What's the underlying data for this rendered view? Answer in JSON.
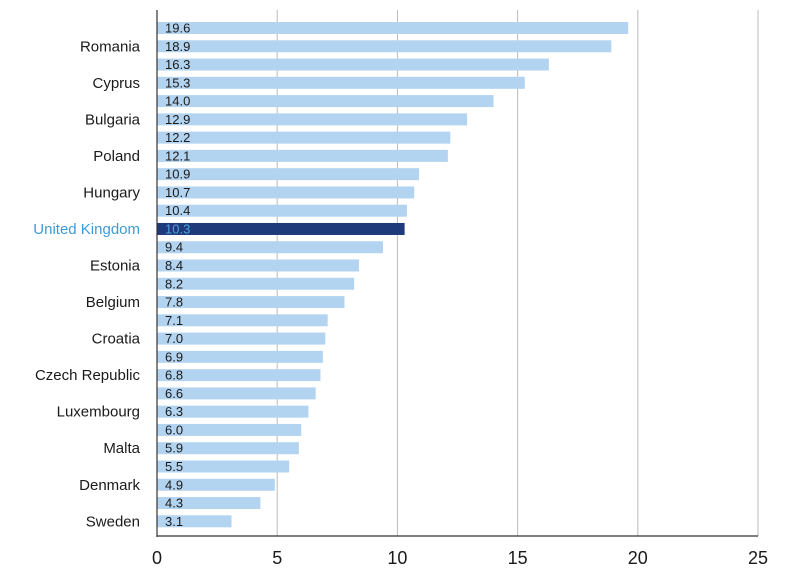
{
  "chart_data": {
    "type": "bar",
    "orientation": "horizontal",
    "title": "",
    "xlabel": "",
    "ylabel": "",
    "xlim": [
      0,
      25
    ],
    "xticks": [
      0,
      5,
      10,
      15,
      20,
      25
    ],
    "grid": true,
    "labeled_categories": [
      "Romania",
      "Cyprus",
      "Bulgaria",
      "Poland",
      "Hungary",
      "United Kingdom",
      "Estonia",
      "Belgium",
      "Croatia",
      "Czech Republic",
      "Luxembourg",
      "Malta",
      "Denmark",
      "Sweden"
    ],
    "bars": [
      {
        "label": "",
        "value": 19.6,
        "value_text": "19.6"
      },
      {
        "label": "Romania",
        "value": 18.9,
        "value_text": "18.9"
      },
      {
        "label": "",
        "value": 16.3,
        "value_text": "16.3"
      },
      {
        "label": "Cyprus",
        "value": 15.3,
        "value_text": "15.3"
      },
      {
        "label": "",
        "value": 14.0,
        "value_text": "14.0"
      },
      {
        "label": "Bulgaria",
        "value": 12.9,
        "value_text": "12.9"
      },
      {
        "label": "",
        "value": 12.2,
        "value_text": "12.2"
      },
      {
        "label": "Poland",
        "value": 12.1,
        "value_text": "12.1"
      },
      {
        "label": "",
        "value": 10.9,
        "value_text": "10.9"
      },
      {
        "label": "Hungary",
        "value": 10.7,
        "value_text": "10.7"
      },
      {
        "label": "",
        "value": 10.4,
        "value_text": "10.4"
      },
      {
        "label": "United Kingdom",
        "value": 10.3,
        "value_text": "10.3",
        "highlight": true
      },
      {
        "label": "",
        "value": 9.4,
        "value_text": "9.4"
      },
      {
        "label": "Estonia",
        "value": 8.4,
        "value_text": "8.4"
      },
      {
        "label": "",
        "value": 8.2,
        "value_text": "8.2"
      },
      {
        "label": "Belgium",
        "value": 7.8,
        "value_text": "7.8"
      },
      {
        "label": "",
        "value": 7.1,
        "value_text": "7.1"
      },
      {
        "label": "Croatia",
        "value": 7.0,
        "value_text": "7.0"
      },
      {
        "label": "",
        "value": 6.9,
        "value_text": "6.9"
      },
      {
        "label": "Czech Republic",
        "value": 6.8,
        "value_text": "6.8"
      },
      {
        "label": "",
        "value": 6.6,
        "value_text": "6.6"
      },
      {
        "label": "Luxembourg",
        "value": 6.3,
        "value_text": "6.3"
      },
      {
        "label": "",
        "value": 6.0,
        "value_text": "6.0"
      },
      {
        "label": "Malta",
        "value": 5.9,
        "value_text": "5.9"
      },
      {
        "label": "",
        "value": 5.5,
        "value_text": "5.5"
      },
      {
        "label": "Denmark",
        "value": 4.9,
        "value_text": "4.9"
      },
      {
        "label": "",
        "value": 4.3,
        "value_text": "4.3"
      },
      {
        "label": "Sweden",
        "value": 3.1,
        "value_text": "3.1"
      }
    ],
    "colors": {
      "bar": "#b3d4f1",
      "highlight_bar": "#1f3a7a",
      "highlight_label": "#3d9bd6",
      "highlight_value": "#4aa3e0",
      "grid": "#bbbbbb",
      "axis": "#333333"
    }
  }
}
